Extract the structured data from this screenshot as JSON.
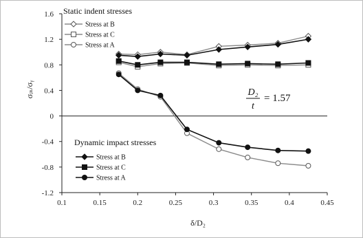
{
  "chart_data": {
    "type": "line",
    "xlabel": "δ/D₂",
    "ylabel": "σᵢₙ/σᵧ",
    "xlim": [
      0.1,
      0.45
    ],
    "ylim": [
      -1.2,
      1.6
    ],
    "x_ticks": [
      "0.1",
      "0.15",
      "0.2",
      "0.25",
      "0.3",
      "0.35",
      "0.4",
      "0.45"
    ],
    "y_ticks": [
      "1.6",
      "1.2",
      "0.8",
      "0.4",
      "0",
      "-0.4",
      "-0.8",
      "-1.2"
    ],
    "grid": false,
    "legends": [
      {
        "title": "Static indent stresses",
        "entries": [
          "Stress at B",
          "Stress at C",
          "Stress at A"
        ],
        "placement": "top-left"
      },
      {
        "title": "Dynamic impact stresses",
        "entries": [
          "Stress at B",
          "Stress at C",
          "Stress at A"
        ],
        "placement": "bottom-left"
      }
    ],
    "annotation": {
      "numerator": "D₂",
      "denominator": "t",
      "value": "= 1.57"
    },
    "series": [
      {
        "name": "Stress at B",
        "group": "static",
        "marker": "diamond",
        "filled": false,
        "x": [
          0.175,
          0.2,
          0.23,
          0.265,
          0.307,
          0.345,
          0.385,
          0.425
        ],
        "y": [
          0.97,
          0.96,
          1.0,
          0.96,
          1.09,
          1.11,
          1.14,
          1.25
        ]
      },
      {
        "name": "Stress at C",
        "group": "static",
        "marker": "square",
        "filled": false,
        "x": [
          0.175,
          0.2,
          0.23,
          0.265,
          0.307,
          0.345,
          0.385,
          0.425
        ],
        "y": [
          0.84,
          0.77,
          0.82,
          0.83,
          0.79,
          0.8,
          0.79,
          0.8
        ]
      },
      {
        "name": "Stress at A",
        "group": "static",
        "marker": "circle",
        "filled": false,
        "x": [
          0.175,
          0.2,
          0.23,
          0.265,
          0.307,
          0.345,
          0.385,
          0.425
        ],
        "y": [
          0.67,
          0.42,
          0.3,
          -0.27,
          -0.52,
          -0.65,
          -0.74,
          -0.78
        ]
      },
      {
        "name": "Stress at B",
        "group": "dynamic",
        "marker": "diamond",
        "filled": true,
        "x": [
          0.175,
          0.2,
          0.23,
          0.265,
          0.307,
          0.345,
          0.385,
          0.425
        ],
        "y": [
          0.95,
          0.93,
          0.97,
          0.95,
          1.04,
          1.08,
          1.12,
          1.2
        ]
      },
      {
        "name": "Stress at C",
        "group": "dynamic",
        "marker": "square",
        "filled": true,
        "x": [
          0.175,
          0.2,
          0.23,
          0.265,
          0.307,
          0.345,
          0.385,
          0.425
        ],
        "y": [
          0.86,
          0.8,
          0.84,
          0.84,
          0.81,
          0.82,
          0.81,
          0.83
        ]
      },
      {
        "name": "Stress at A",
        "group": "dynamic",
        "marker": "circle",
        "filled": true,
        "x": [
          0.175,
          0.2,
          0.23,
          0.265,
          0.307,
          0.345,
          0.385,
          0.425
        ],
        "y": [
          0.65,
          0.4,
          0.32,
          -0.21,
          -0.42,
          -0.49,
          -0.54,
          -0.55
        ]
      }
    ]
  }
}
